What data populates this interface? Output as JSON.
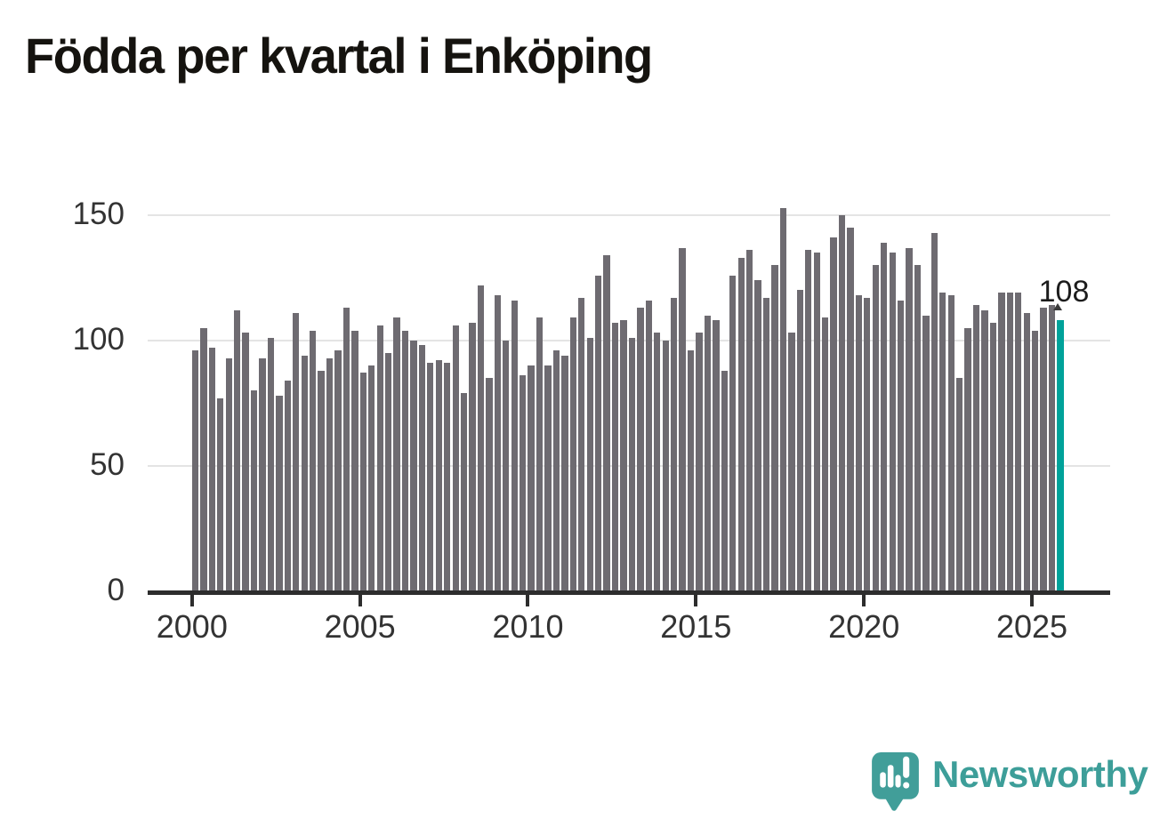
{
  "title": "Födda per kvartal i Enköping",
  "chart_data": {
    "type": "bar",
    "title": "Födda per kvartal i Enköping",
    "frequency": "quarterly",
    "start_year": 2000,
    "end_year": 2025,
    "values": [
      96,
      105,
      97,
      77,
      93,
      112,
      103,
      80,
      93,
      101,
      78,
      84,
      111,
      94,
      104,
      88,
      93,
      96,
      113,
      104,
      87,
      90,
      106,
      95,
      109,
      104,
      100,
      98,
      91,
      92,
      91,
      106,
      79,
      107,
      122,
      85,
      118,
      100,
      116,
      86,
      90,
      109,
      90,
      96,
      94,
      109,
      117,
      101,
      126,
      134,
      107,
      108,
      101,
      113,
      116,
      103,
      100,
      117,
      137,
      96,
      103,
      110,
      108,
      88,
      126,
      133,
      136,
      124,
      117,
      130,
      153,
      103,
      120,
      136,
      135,
      109,
      141,
      150,
      145,
      118,
      117,
      130,
      139,
      135,
      116,
      137,
      130,
      110,
      143,
      119,
      118,
      85,
      105,
      114,
      112,
      107,
      119,
      119,
      119,
      111,
      104,
      113,
      114,
      108
    ],
    "x_ticks": [
      "2000",
      "2005",
      "2010",
      "2015",
      "2020",
      "2025"
    ],
    "y_ticks": [
      0,
      50,
      100,
      150
    ],
    "ylim": [
      0,
      160
    ],
    "grid": "horizontal",
    "bar_color": "#6e6b71",
    "highlight": {
      "index": 103,
      "label": "108",
      "color": "#00a29a"
    }
  },
  "footer": {
    "brand": "Newsworthy"
  }
}
